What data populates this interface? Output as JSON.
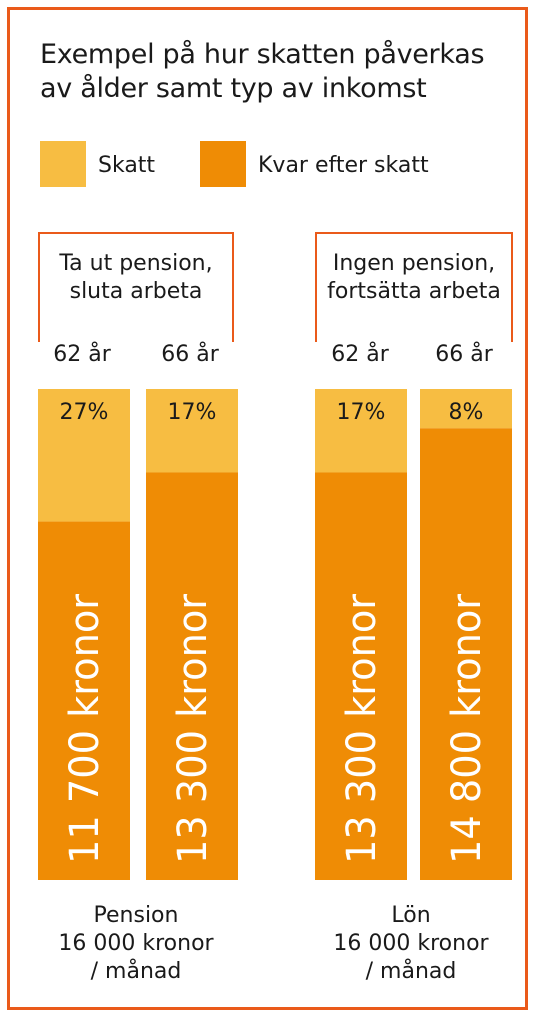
{
  "title_lines": [
    "Exempel på hur skatten påverkas",
    "av ålder samt typ av inkomst"
  ],
  "legend": [
    {
      "label": "Skatt",
      "color": "#f7bd42"
    },
    {
      "label": "Kvar efter skatt",
      "color": "#ef8c05"
    }
  ],
  "groups": [
    {
      "label_lines": [
        "Ta ut pension,",
        "sluta arbeta"
      ],
      "bottom_lines": [
        "Pension",
        "16 000 kronor",
        "/ månad"
      ]
    },
    {
      "label_lines": [
        "Ingen pension,",
        "fortsätta arbeta"
      ],
      "bottom_lines": [
        "Lön",
        "16 000 kronor",
        "/ månad"
      ]
    }
  ],
  "chart_data": {
    "type": "bar",
    "stacked": true,
    "gross_monthly_income": 16000,
    "categories": [
      "62 år",
      "66 år",
      "62 år",
      "66 år"
    ],
    "series": [
      {
        "name": "Skatt",
        "color": "#f7bd42",
        "percent_labels": [
          "27%",
          "17%",
          "17%",
          "8%"
        ],
        "values": [
          27,
          17,
          17,
          8
        ]
      },
      {
        "name": "Kvar efter skatt",
        "color": "#ef8c05",
        "amount_labels": [
          "11 700 kronor",
          "13 300 kronor",
          "13 300 kronor",
          "14 800 kronor"
        ],
        "values": [
          11700,
          13300,
          13300,
          14800
        ]
      }
    ]
  }
}
